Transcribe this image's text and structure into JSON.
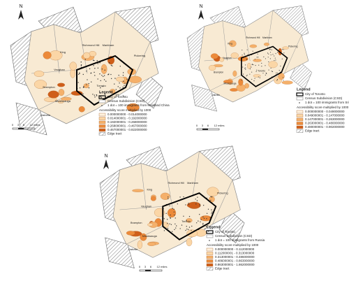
{
  "panels": [
    {
      "north": "N",
      "scale": [
        "0",
        "3",
        "6",
        "12 miles"
      ],
      "places": [
        "King",
        "Vaughan",
        "Markham",
        "Brampton",
        "Mississauga",
        "Oakville",
        "Toronto",
        "Pickering",
        "Richmond Hill"
      ],
      "legend": {
        "title": "Legend",
        "city": "City of Toronto",
        "csd": "Census Subdivision (CSD)",
        "dot": "1 dot = 100 immigrants from Mainland China",
        "score": "Accessibility score multiplied by 1000",
        "classes": [
          "0.000000000 - 0.014000000",
          "0.014000001 - 0.192000000",
          "0.192000001 - 0.268000000",
          "0.268000001 - 0.467000000",
          "0.467000001 - 0.822000000"
        ],
        "edge": "Edge tract"
      }
    },
    {
      "north": "N",
      "scale": [
        "0",
        "3",
        "6",
        "12 miles"
      ],
      "places": [
        "King",
        "Vaughan",
        "Markham",
        "Brampton",
        "Mississauga",
        "Oakville",
        "Toronto",
        "Pickering",
        "Richmond Hill"
      ],
      "legend": {
        "title": "Legend",
        "city": "City of Toronto",
        "csd": "Census Subdivision (CSD)",
        "dot": "1 dot = 100 immigrants from Sri Lanka",
        "score": "Accessibility score multiplied by 1000",
        "classes": [
          "0.000000000 - 0.049000000",
          "0.049000001 - 0.147000000",
          "0.147000001 - 0.263000000",
          "0.263000001 - 0.480000000",
          "0.480000001 - 0.902000000"
        ],
        "edge": "Edge tract"
      }
    },
    {
      "north": "N",
      "scale": [
        "0",
        "3",
        "6",
        "12 miles"
      ],
      "places": [
        "King",
        "Vaughan",
        "Markham",
        "Brampton",
        "Mississauga",
        "Oakville",
        "Toronto",
        "Pickering",
        "Richmond Hill"
      ],
      "legend": {
        "title": "Legend",
        "city": "City of Toronto",
        "csd": "Census Subdivision (CSD)",
        "dot": "1 dot = 100 immigrants from Russia",
        "score": "Accessibility score multiplied by 1000",
        "classes": [
          "0.000000000 - 0.112000000",
          "0.112000001 - 0.313000000",
          "0.313000001 - 0.486000000",
          "0.486000001 - 0.863000000",
          "0.863000001 - 1.862000000"
        ],
        "edge": "Edge tract"
      }
    }
  ]
}
